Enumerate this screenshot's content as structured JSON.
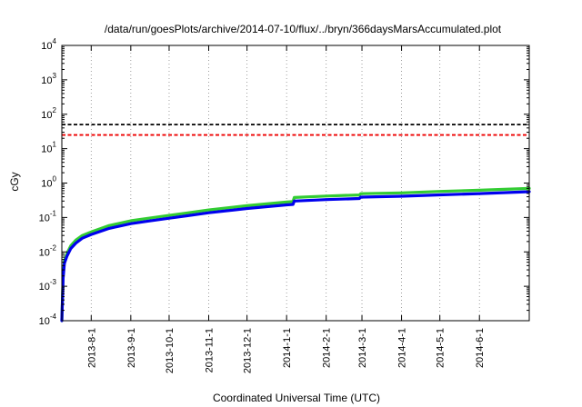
{
  "chart_data": {
    "type": "line",
    "title": "/data/run/goesPlots/archive/2014-07-10/flux/../bryn/366daysMarsAccumulated.plot",
    "xlabel": "Coordinated Universal Time (UTC)",
    "ylabel": "cGy",
    "yscale": "log",
    "ylim": [
      0.0001,
      10000
    ],
    "xlim": [
      "2013-07-09",
      "2014-07-10"
    ],
    "y_ticks": [
      {
        "value": 0.0001,
        "mant": "10",
        "exp": "-4"
      },
      {
        "value": 0.001,
        "mant": "10",
        "exp": "-3"
      },
      {
        "value": 0.01,
        "mant": "10",
        "exp": "-2"
      },
      {
        "value": 0.1,
        "mant": "10",
        "exp": "-1"
      },
      {
        "value": 1,
        "mant": "10",
        "exp": "0"
      },
      {
        "value": 10,
        "mant": "10",
        "exp": "1"
      },
      {
        "value": 100,
        "mant": "10",
        "exp": "2"
      },
      {
        "value": 1000,
        "mant": "10",
        "exp": "3"
      },
      {
        "value": 10000,
        "mant": "10",
        "exp": "4"
      }
    ],
    "x_ticks": [
      "2013-8-1",
      "2013-9-1",
      "2013-10-1",
      "2013-11-1",
      "2013-12-1",
      "2014-1-1",
      "2014-2-1",
      "2014-3-1",
      "2014-4-1",
      "2014-5-1",
      "2014-6-1"
    ],
    "x_tick_dates": [
      "2013-08-01",
      "2013-09-01",
      "2013-10-01",
      "2013-11-01",
      "2013-12-01",
      "2014-01-01",
      "2014-02-01",
      "2014-03-01",
      "2014-04-01",
      "2014-05-01",
      "2014-06-01"
    ],
    "grid": true,
    "reference_lines": [
      {
        "y": 50,
        "color": "#000000",
        "style": "dashed"
      },
      {
        "y": 25,
        "color": "#ee0000",
        "style": "dashed"
      }
    ],
    "series": [
      {
        "color": "#33cc33",
        "x": [
          "2013-07-09",
          "2013-07-10",
          "2013-07-11",
          "2013-07-13",
          "2013-07-16",
          "2013-07-20",
          "2013-07-25",
          "2013-08-01",
          "2013-08-15",
          "2013-09-01",
          "2013-09-15",
          "2013-10-01",
          "2013-10-15",
          "2013-11-01",
          "2013-12-01",
          "2014-01-01",
          "2014-01-06",
          "2014-01-07",
          "2014-02-01",
          "2014-02-27",
          "2014-02-28",
          "2014-04-01",
          "2014-05-01",
          "2014-06-01",
          "2014-07-10"
        ],
        "values": [
          0.0001,
          0.002,
          0.0055,
          0.009,
          0.015,
          0.022,
          0.03,
          0.038,
          0.058,
          0.08,
          0.095,
          0.115,
          0.135,
          0.165,
          0.22,
          0.28,
          0.29,
          0.38,
          0.42,
          0.45,
          0.49,
          0.52,
          0.57,
          0.62,
          0.7
        ]
      },
      {
        "color": "#0000ee",
        "x": [
          "2013-07-09",
          "2013-07-10",
          "2013-07-11",
          "2013-07-13",
          "2013-07-16",
          "2013-07-20",
          "2013-07-25",
          "2013-08-01",
          "2013-08-15",
          "2013-09-01",
          "2013-09-15",
          "2013-10-01",
          "2013-10-15",
          "2013-11-01",
          "2013-12-01",
          "2014-01-01",
          "2014-01-06",
          "2014-01-07",
          "2014-02-01",
          "2014-02-27",
          "2014-02-28",
          "2014-04-01",
          "2014-05-01",
          "2014-06-01",
          "2014-07-10"
        ],
        "values": [
          0.0001,
          0.0017,
          0.0046,
          0.0075,
          0.0125,
          0.018,
          0.025,
          0.032,
          0.048,
          0.066,
          0.079,
          0.095,
          0.112,
          0.137,
          0.182,
          0.232,
          0.24,
          0.3,
          0.33,
          0.355,
          0.39,
          0.415,
          0.455,
          0.495,
          0.56
        ]
      }
    ]
  }
}
